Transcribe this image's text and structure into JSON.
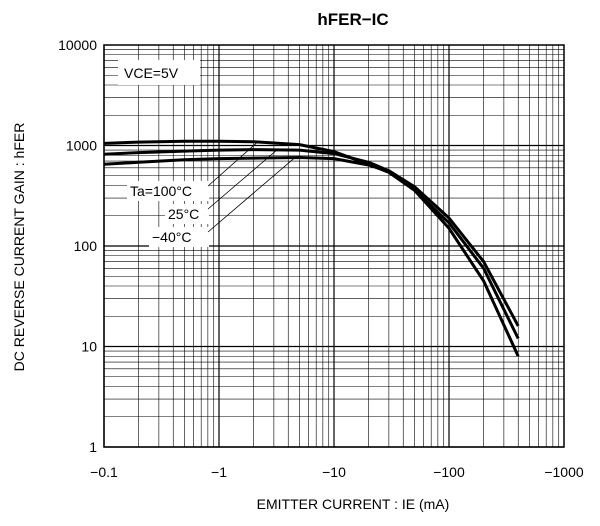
{
  "chart_data": {
    "type": "line",
    "title": "hFER−IC",
    "xlabel": "EMITTER CURRENT : IE (mA)",
    "ylabel": "DC REVERSE CURRENT GAIN : hFER",
    "x_scale": "log",
    "y_scale": "log",
    "xlim": [
      -0.1,
      -1000
    ],
    "ylim": [
      1,
      10000
    ],
    "x_ticks": [
      "−0.1",
      "−1",
      "−10",
      "−100",
      "−1000"
    ],
    "y_ticks": [
      "1",
      "10",
      "100",
      "1000",
      "10000"
    ],
    "grid": true,
    "condition_label": "VCE=5V",
    "series_labels": [
      "Ta=100°C",
      "25°C",
      "−40°C"
    ],
    "series": [
      {
        "name": "Ta=100°C",
        "x": [
          -0.1,
          -0.2,
          -0.5,
          -1,
          -2,
          -5,
          -10,
          -20,
          -30,
          -50,
          -100,
          -200,
          -400
        ],
        "y": [
          1050,
          1080,
          1100,
          1100,
          1090,
          1020,
          870,
          650,
          540,
          360,
          170,
          60,
          12
        ]
      },
      {
        "name": "25°C",
        "x": [
          -0.1,
          -0.2,
          -0.5,
          -1,
          -2,
          -5,
          -10,
          -20,
          -30,
          -50,
          -100,
          -200,
          -400
        ],
        "y": [
          820,
          850,
          880,
          900,
          910,
          900,
          830,
          680,
          560,
          390,
          190,
          70,
          16
        ]
      },
      {
        "name": "−40°C",
        "x": [
          -0.1,
          -0.2,
          -0.5,
          -1,
          -2,
          -5,
          -10,
          -20,
          -30,
          -50,
          -100,
          -200,
          -400
        ],
        "y": [
          650,
          680,
          720,
          740,
          750,
          760,
          740,
          640,
          550,
          360,
          150,
          45,
          8
        ]
      }
    ]
  }
}
